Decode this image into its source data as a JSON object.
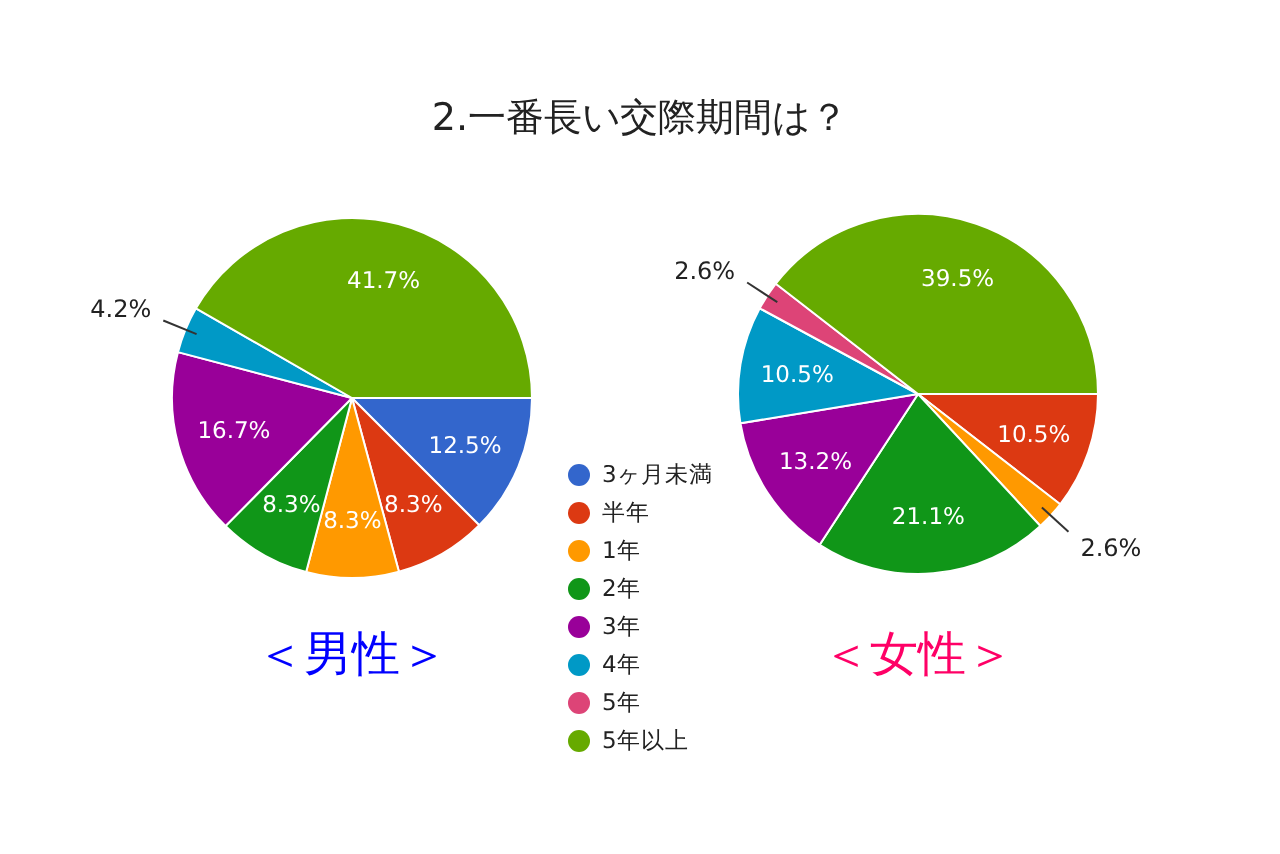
{
  "chart_data": {
    "type": "pie",
    "title": "2.一番長い交際期間は？",
    "categories": [
      "3ヶ月未満",
      "半年",
      "1年",
      "2年",
      "3年",
      "4年",
      "5年",
      "5年以上"
    ],
    "colors": [
      "#3366cc",
      "#dc3912",
      "#ff9900",
      "#109618",
      "#990099",
      "#0099c6",
      "#dd4477",
      "#66aa00"
    ],
    "legend": "right",
    "series": [
      {
        "name": "＜男性＞",
        "values": [
          12.5,
          8.3,
          8.3,
          8.3,
          16.7,
          4.2,
          0,
          41.7
        ],
        "value_labels": [
          "12.5%",
          "8.3%",
          "8.3%",
          "8.3%",
          "16.7%",
          "4.2%",
          null,
          "41.7%"
        ]
      },
      {
        "name": "＜女性＞",
        "values": [
          0,
          10.5,
          2.6,
          21.1,
          13.2,
          10.5,
          2.6,
          39.5
        ],
        "value_labels": [
          null,
          "10.5%",
          "2.6%",
          "21.1%",
          "13.2%",
          "10.5%",
          "2.6%",
          "39.5%"
        ]
      }
    ]
  }
}
